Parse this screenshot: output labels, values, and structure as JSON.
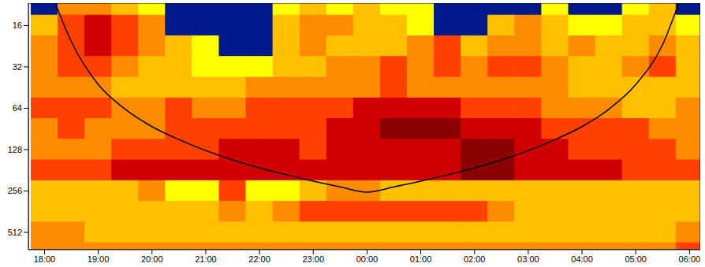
{
  "chart_data": {
    "type": "heatmap",
    "log": "y",
    "tick_labels": true,
    "grid": false,
    "x": [
      18,
      18.5,
      19,
      19.5,
      20,
      20.5,
      21,
      21.5,
      22,
      22.5,
      23,
      23.5,
      24,
      24.5,
      25,
      25.5,
      26,
      26.5,
      27,
      27.5,
      28,
      28.5,
      29,
      29.5,
      30
    ],
    "y": [
      11.3,
      16,
      22.6,
      32,
      45.3,
      64,
      90.5,
      128,
      181,
      256,
      362,
      512,
      724
    ],
    "levels": [
      0,
      1,
      2,
      3,
      4,
      5,
      6
    ],
    "colors": [
      "#001a8c",
      "#ffff00",
      "#ffc000",
      "#ff8c00",
      "#ff4000",
      "#d00000",
      "#8b0000"
    ],
    "cells": [
      [
        0,
        3,
        3,
        2,
        1,
        0,
        0,
        0,
        0,
        1,
        2,
        1,
        2,
        1,
        1,
        0,
        0,
        0,
        0,
        1,
        0,
        0,
        1,
        2,
        0
      ],
      [
        2,
        4,
        5,
        4,
        3,
        0,
        0,
        0,
        0,
        2,
        3,
        3,
        2,
        2,
        1,
        0,
        0,
        2,
        3,
        2,
        1,
        1,
        2,
        2,
        1
      ],
      [
        3,
        4,
        5,
        4,
        3,
        2,
        1,
        0,
        0,
        2,
        3,
        2,
        2,
        2,
        3,
        4,
        2,
        3,
        3,
        2,
        3,
        2,
        2,
        3,
        2
      ],
      [
        3,
        4,
        4,
        3,
        2,
        2,
        1,
        1,
        1,
        2,
        2,
        3,
        3,
        4,
        3,
        4,
        3,
        4,
        4,
        3,
        2,
        2,
        3,
        4,
        2
      ],
      [
        3,
        3,
        3,
        2,
        2,
        2,
        2,
        2,
        3,
        3,
        3,
        3,
        3,
        4,
        3,
        3,
        3,
        3,
        3,
        3,
        2,
        2,
        2,
        2,
        2
      ],
      [
        4,
        4,
        4,
        3,
        3,
        4,
        3,
        3,
        4,
        4,
        4,
        4,
        5,
        5,
        5,
        5,
        4,
        4,
        4,
        3,
        3,
        3,
        2,
        2,
        3
      ],
      [
        3,
        4,
        3,
        3,
        3,
        4,
        4,
        4,
        4,
        4,
        4,
        5,
        5,
        6,
        6,
        6,
        5,
        5,
        5,
        4,
        4,
        4,
        4,
        3,
        3
      ],
      [
        3,
        3,
        3,
        4,
        4,
        4,
        4,
        5,
        5,
        5,
        4,
        5,
        5,
        5,
        5,
        5,
        6,
        6,
        5,
        5,
        4,
        4,
        4,
        4,
        3
      ],
      [
        4,
        4,
        4,
        5,
        5,
        5,
        5,
        5,
        5,
        5,
        5,
        5,
        5,
        5,
        5,
        5,
        6,
        6,
        5,
        5,
        5,
        5,
        4,
        4,
        4
      ],
      [
        2,
        2,
        2,
        2,
        3,
        1,
        1,
        4,
        1,
        1,
        2,
        3,
        3,
        2,
        2,
        2,
        2,
        2,
        2,
        2,
        2,
        2,
        2,
        2,
        2
      ],
      [
        2,
        2,
        2,
        2,
        2,
        2,
        2,
        3,
        2,
        3,
        4,
        4,
        4,
        4,
        4,
        4,
        4,
        3,
        2,
        2,
        2,
        2,
        2,
        2,
        2
      ],
      [
        3,
        3,
        2,
        2,
        2,
        2,
        2,
        2,
        2,
        2,
        2,
        2,
        2,
        2,
        2,
        2,
        2,
        2,
        2,
        2,
        2,
        2,
        2,
        2,
        3
      ],
      [
        3,
        3,
        3,
        3,
        3,
        3,
        3,
        3,
        3,
        3,
        3,
        3,
        3,
        3,
        3,
        3,
        3,
        3,
        3,
        3,
        3,
        3,
        3,
        3,
        4
      ]
    ],
    "coi": {
      "color": "#000000",
      "x": [
        18.2,
        18.5,
        19,
        19.5,
        20,
        20.5,
        21,
        21.5,
        22,
        22.5,
        23,
        23.5,
        24,
        24.5,
        25,
        25.5,
        26,
        26.5,
        27,
        27.5,
        28,
        28.5,
        29,
        29.5,
        29.8
      ],
      "values": [
        11,
        21,
        43,
        65,
        87,
        108,
        130,
        152,
        174,
        195,
        217,
        239,
        261,
        239,
        217,
        195,
        174,
        152,
        130,
        108,
        87,
        65,
        43,
        22,
        11
      ]
    },
    "xlim": [
      17.7,
      30.2
    ],
    "xticks": [
      {
        "value": 18,
        "label": "18:00"
      },
      {
        "value": 19,
        "label": "19:00"
      },
      {
        "value": 20,
        "label": "20:00"
      },
      {
        "value": 21,
        "label": "21:00"
      },
      {
        "value": 22,
        "label": "22:00"
      },
      {
        "value": 23,
        "label": "23:00"
      },
      {
        "value": 24,
        "label": "00:00"
      },
      {
        "value": 25,
        "label": "01:00"
      },
      {
        "value": 26,
        "label": "02:00"
      },
      {
        "value": 27,
        "label": "03:00"
      },
      {
        "value": 28,
        "label": "04:00"
      },
      {
        "value": 29,
        "label": "05:00"
      },
      {
        "value": 30,
        "label": "06:00"
      }
    ],
    "ylim": [
      11,
      684
    ],
    "yticks": [
      16,
      32,
      64,
      128,
      256,
      512
    ]
  }
}
